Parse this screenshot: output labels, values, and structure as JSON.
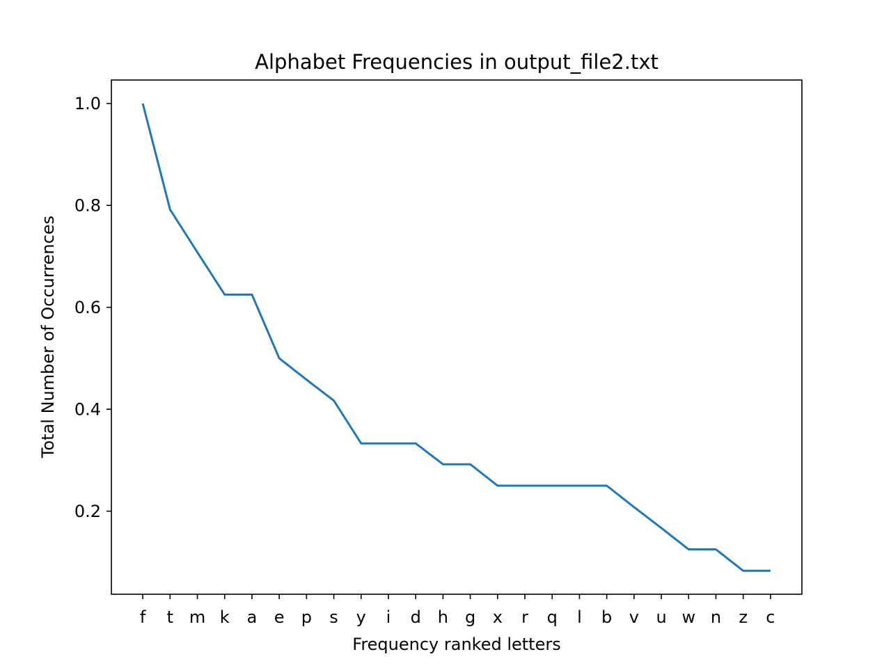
{
  "chart_data": {
    "type": "line",
    "title": "Alphabet Frequencies in output_file2.txt",
    "xlabel": "Frequency ranked letters",
    "ylabel": "Total Number of Occurrences",
    "categories": [
      "f",
      "t",
      "m",
      "k",
      "a",
      "e",
      "p",
      "s",
      "y",
      "i",
      "d",
      "h",
      "g",
      "x",
      "r",
      "q",
      "l",
      "b",
      "v",
      "u",
      "w",
      "n",
      "z",
      "c"
    ],
    "series": [
      {
        "values": [
          1.0,
          0.792,
          0.708,
          0.625,
          0.625,
          0.5,
          0.458,
          0.417,
          0.333,
          0.333,
          0.333,
          0.292,
          0.292,
          0.25,
          0.25,
          0.25,
          0.25,
          0.25,
          0.208,
          0.167,
          0.125,
          0.125,
          0.083,
          0.083
        ],
        "color": "#1f77b4"
      }
    ],
    "ylim": [
      0.037,
      1.046
    ],
    "yticks": [
      0.2,
      0.4,
      0.6,
      0.8,
      1.0
    ],
    "ytick_labels": [
      "0.2",
      "0.4",
      "0.6",
      "0.8",
      "1.0"
    ],
    "grid": false,
    "legend": false
  }
}
